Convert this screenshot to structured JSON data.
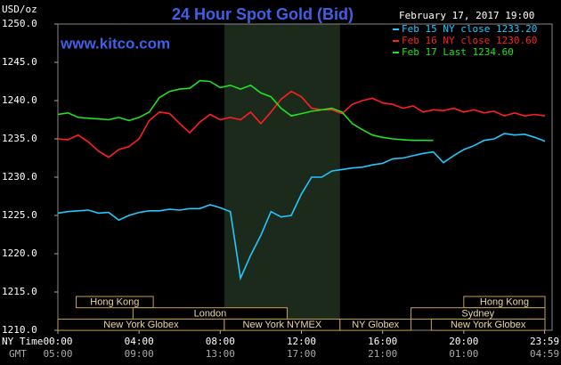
{
  "chart_data": {
    "type": "line",
    "title": "24 Hour Spot Gold (Bid)",
    "subtitle": "www.kitco.com",
    "timestamp": "February 17, 2017 19:00",
    "y_label": "USD/oz",
    "x_label": "NY Time",
    "x2_label": "GMT",
    "x": [
      0,
      0.5,
      1,
      1.5,
      2,
      2.5,
      3,
      3.5,
      4,
      4.5,
      5,
      5.5,
      6,
      6.5,
      7,
      7.5,
      8,
      8.5,
      9,
      9.5,
      10,
      10.5,
      11,
      11.5,
      12,
      12.5,
      13,
      13.5,
      14,
      14.5,
      15,
      15.5,
      16,
      16.5,
      17,
      17.5,
      18,
      18.5,
      19,
      19.5,
      20,
      20.5,
      21,
      21.5,
      22,
      22.5,
      23,
      23.5,
      24
    ],
    "series": [
      {
        "name": "Feb 15 NY close 1233.20",
        "color": "#22c8ff",
        "values": [
          1225.3,
          1225.5,
          1225.6,
          1225.7,
          1225.3,
          1225.4,
          1224.4,
          1225.0,
          1225.4,
          1225.6,
          1225.6,
          1225.8,
          1225.7,
          1225.9,
          1225.9,
          1226.4,
          1226.0,
          1225.5,
          1216.8,
          1219.8,
          1222.4,
          1225.5,
          1224.8,
          1225.0,
          1227.8,
          1230.0,
          1230.0,
          1230.8,
          1231.0,
          1231.2,
          1231.3,
          1231.6,
          1231.8,
          1232.4,
          1232.5,
          1232.8,
          1233.1,
          1233.3,
          1231.9,
          1232.8,
          1233.6,
          1234.1,
          1234.8,
          1235.0,
          1235.7,
          1235.5,
          1235.6,
          1235.2,
          1234.7
        ]
      },
      {
        "name": "Feb 16 NY close 1230.60",
        "color": "#ff2020",
        "values": [
          1235.0,
          1234.9,
          1235.5,
          1234.6,
          1233.4,
          1232.6,
          1233.6,
          1234.0,
          1235.0,
          1237.4,
          1238.5,
          1238.3,
          1237.0,
          1235.8,
          1237.2,
          1238.2,
          1237.5,
          1237.8,
          1237.5,
          1238.5,
          1237.0,
          1238.5,
          1240.2,
          1241.2,
          1240.5,
          1239.0,
          1238.8,
          1238.8,
          1238.3,
          1239.5,
          1240.0,
          1240.3,
          1239.7,
          1239.5,
          1239.0,
          1239.3,
          1238.5,
          1238.8,
          1238.7,
          1239.0,
          1238.5,
          1238.8,
          1238.4,
          1238.6,
          1238.0,
          1238.4,
          1238.0,
          1238.2,
          1238.0
        ]
      },
      {
        "name": "Feb 17 Last 1234.60",
        "color": "#22e022",
        "values": [
          1238.2,
          1238.4,
          1237.8,
          1237.7,
          1237.6,
          1237.5,
          1237.8,
          1237.4,
          1237.8,
          1238.5,
          1240.4,
          1241.2,
          1241.5,
          1241.6,
          1242.6,
          1242.5,
          1241.7,
          1242.0,
          1241.5,
          1242.0,
          1241.0,
          1240.5,
          1239.0,
          1238.0,
          1238.3,
          1238.6,
          1238.8,
          1239.0,
          1238.5,
          1237.0,
          1236.2,
          1235.5,
          1235.2,
          1235.0,
          1234.9,
          1234.8,
          1234.8,
          1234.8,
          null,
          null,
          null,
          null,
          null,
          null,
          null,
          null,
          null,
          null,
          null
        ]
      }
    ],
    "xlim": [
      0,
      24
    ],
    "xticks": [
      {
        "value": 0,
        "label": "00:00"
      },
      {
        "value": 4,
        "label": "04:00"
      },
      {
        "value": 8,
        "label": "08:00"
      },
      {
        "value": 12,
        "label": "12:00"
      },
      {
        "value": 16,
        "label": "16:00"
      },
      {
        "value": 20,
        "label": "20:00"
      },
      {
        "value": 23.98,
        "label": "23:59"
      }
    ],
    "x2ticks": [
      {
        "value": 0,
        "label": "05:00"
      },
      {
        "value": 4,
        "label": "09:00"
      },
      {
        "value": 8,
        "label": "13:00"
      },
      {
        "value": 12,
        "label": "17:00"
      },
      {
        "value": 16,
        "label": "21:00"
      },
      {
        "value": 20,
        "label": "01:00"
      },
      {
        "value": 23.98,
        "label": "04:59"
      }
    ],
    "ylim": [
      1210,
      1250
    ],
    "yticks": [
      {
        "value": 1210,
        "label": "1210.0"
      },
      {
        "value": 1215,
        "label": "1215.0"
      },
      {
        "value": 1220,
        "label": "1220.0"
      },
      {
        "value": 1225,
        "label": "1225.0"
      },
      {
        "value": 1230,
        "label": "1230.0"
      },
      {
        "value": 1235,
        "label": "1235.0"
      },
      {
        "value": 1240,
        "label": "1240.0"
      },
      {
        "value": 1245,
        "label": "1245.0"
      },
      {
        "value": 1250,
        "label": "1250.0"
      }
    ],
    "shaded": [
      8.2,
      13.9
    ],
    "session_rows": [
      [
        {
          "name": "Hong Kong",
          "start": 0.9,
          "end": 4.7
        },
        {
          "name": "Hong Kong",
          "start": 20.0,
          "end": 24
        }
      ],
      [
        {
          "name": "London",
          "start": 3.7,
          "end": 11.3
        },
        {
          "name": "Sydney",
          "start": 17.4,
          "end": 24
        }
      ],
      [
        {
          "name": "New York Globex",
          "start": 0,
          "end": 8.2
        },
        {
          "name": "New York NYMEX",
          "start": 8.2,
          "end": 13.9
        },
        {
          "name": "NY Globex",
          "start": 13.9,
          "end": 17.4
        },
        {
          "name": "New York Globex",
          "start": 18.4,
          "end": 24
        }
      ]
    ]
  }
}
